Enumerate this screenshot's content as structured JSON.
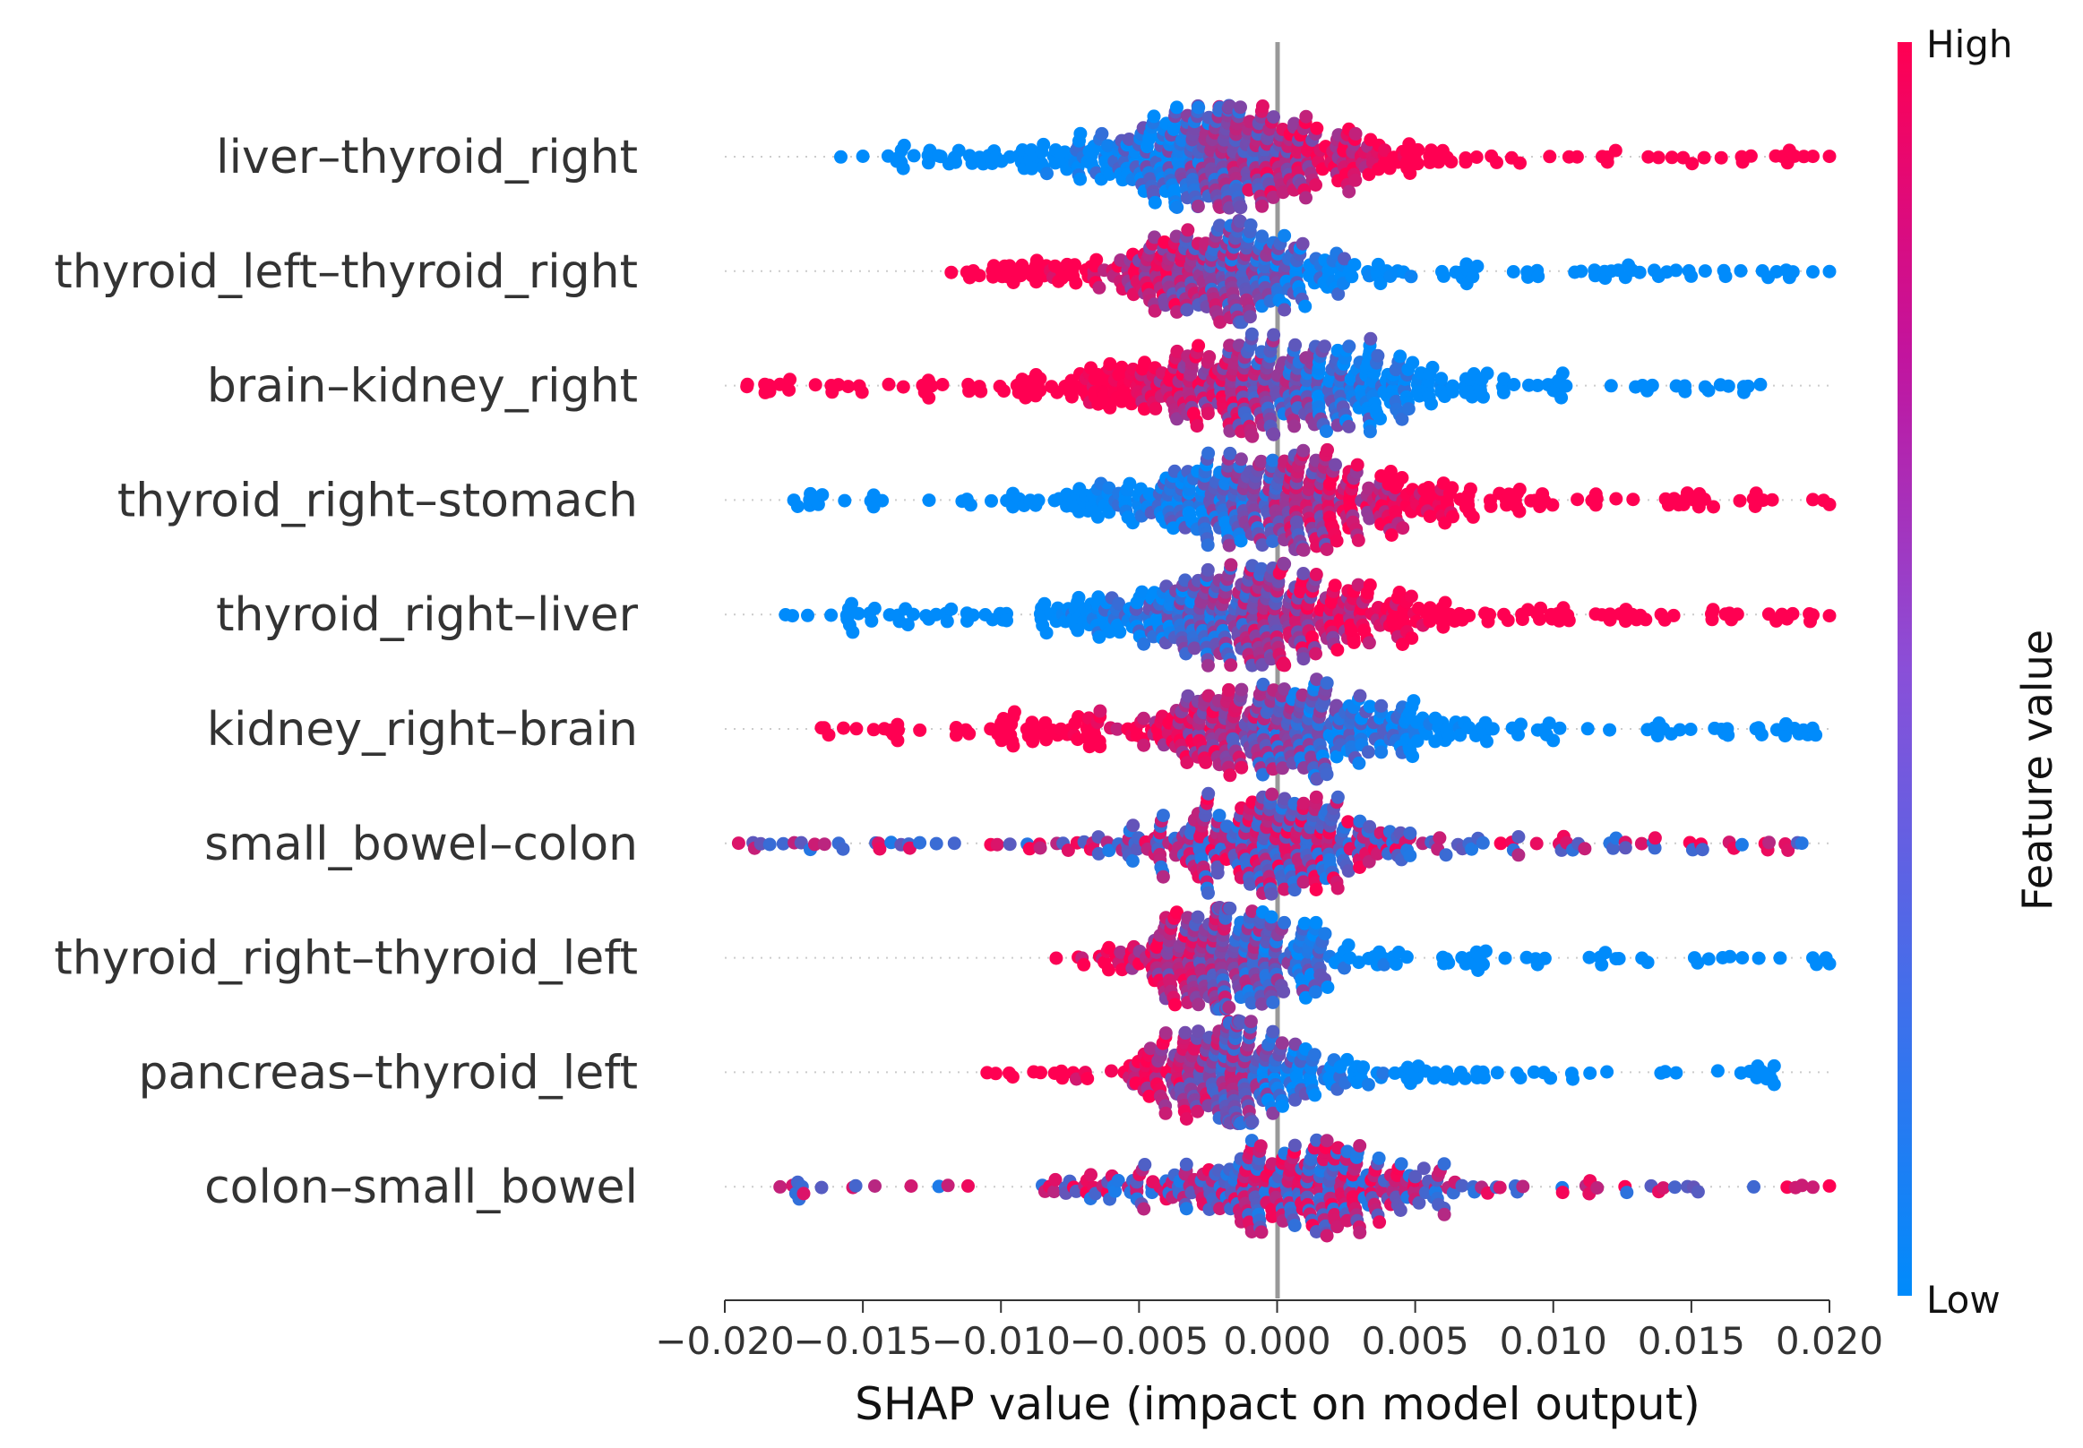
{
  "chart_data": {
    "type": "scatter",
    "subtype": "shap-beeswarm",
    "xlabel": "SHAP value (impact on model output)",
    "xlim": [
      -0.02,
      0.02
    ],
    "xticks": [
      -0.02,
      -0.015,
      -0.01,
      -0.005,
      0.0,
      0.005,
      0.01,
      0.015,
      0.02
    ],
    "xtick_labels": [
      "−0.020",
      "−0.015",
      "−0.010",
      "−0.005",
      "0.000",
      "0.005",
      "0.010",
      "0.015",
      "0.020"
    ],
    "zero_line": 0.0,
    "colorbar": {
      "title": "Feature value",
      "high_label": "High",
      "low_label": "Low",
      "low_color": "#008bfb",
      "high_color": "#ff0052"
    },
    "series": [
      {
        "name": "liver–thyroid_right",
        "min": -0.0158,
        "max": 0.02,
        "center": -0.0015,
        "spread": 0.003,
        "density": 470,
        "corr": 1
      },
      {
        "name": "thyroid_left–thyroid_right",
        "min": -0.0118,
        "max": 0.02,
        "center": -0.0022,
        "spread": 0.0028,
        "density": 360,
        "corr": -1
      },
      {
        "name": "brain–kidney_right",
        "min": -0.0192,
        "max": 0.0175,
        "center": -0.0005,
        "spread": 0.004,
        "density": 470,
        "corr": -1
      },
      {
        "name": "thyroid_right–stomach",
        "min": -0.0175,
        "max": 0.02,
        "center": 0.0,
        "spread": 0.0035,
        "density": 460,
        "corr": 1
      },
      {
        "name": "thyroid_right–liver",
        "min": -0.0178,
        "max": 0.02,
        "center": -0.0012,
        "spread": 0.0035,
        "density": 470,
        "corr": 1
      },
      {
        "name": "kidney_right–brain",
        "min": -0.0165,
        "max": 0.0195,
        "center": -0.0005,
        "spread": 0.0035,
        "density": 420,
        "corr": -1
      },
      {
        "name": "small_bowel–colon",
        "min": -0.0195,
        "max": 0.019,
        "center": 0.0,
        "spread": 0.003,
        "density": 380,
        "corr": 0
      },
      {
        "name": "thyroid_right–thyroid_left",
        "min": -0.008,
        "max": 0.02,
        "center": -0.0018,
        "spread": 0.0022,
        "density": 330,
        "corr": -1
      },
      {
        "name": "pancreas–thyroid_left",
        "min": -0.0105,
        "max": 0.018,
        "center": -0.0018,
        "spread": 0.0022,
        "density": 320,
        "corr": -1
      },
      {
        "name": "colon–small_bowel",
        "min": -0.018,
        "max": 0.02,
        "center": 0.0005,
        "spread": 0.003,
        "density": 360,
        "corr": 0
      }
    ]
  }
}
